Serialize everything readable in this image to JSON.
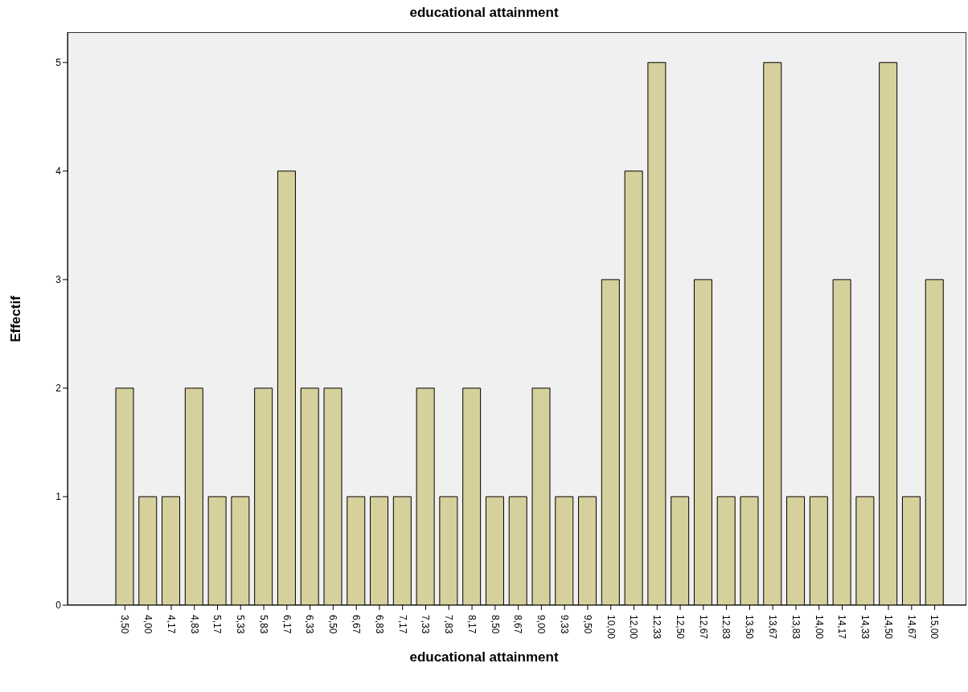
{
  "chart_data": {
    "type": "bar",
    "title": "educational attainment",
    "xlabel": "educational attainment",
    "ylabel": "Effectif",
    "categories": [
      "3,50",
      "4,00",
      "4,17",
      "4,83",
      "5,17",
      "5,33",
      "5,83",
      "6,17",
      "6,33",
      "6,50",
      "6,67",
      "6,83",
      "7,17",
      "7,33",
      "7,83",
      "8,17",
      "8,50",
      "8,67",
      "9,00",
      "9,33",
      "9,50",
      "10,00",
      "12,00",
      "12,33",
      "12,50",
      "12,67",
      "12,83",
      "13,50",
      "13,67",
      "13,83",
      "14,00",
      "14,17",
      "14,33",
      "14,50",
      "14,67",
      "15,00"
    ],
    "values": [
      2,
      1,
      1,
      2,
      1,
      1,
      2,
      4,
      2,
      2,
      1,
      1,
      1,
      2,
      1,
      2,
      1,
      1,
      2,
      1,
      1,
      3,
      4,
      5,
      1,
      3,
      1,
      1,
      5,
      1,
      1,
      3,
      1,
      5,
      1,
      3
    ],
    "color": "#d6d09c",
    "ylim": [
      0,
      5.28
    ],
    "yticks": [
      0,
      1,
      2,
      3,
      4,
      5
    ],
    "grid": false,
    "legend": false
  }
}
